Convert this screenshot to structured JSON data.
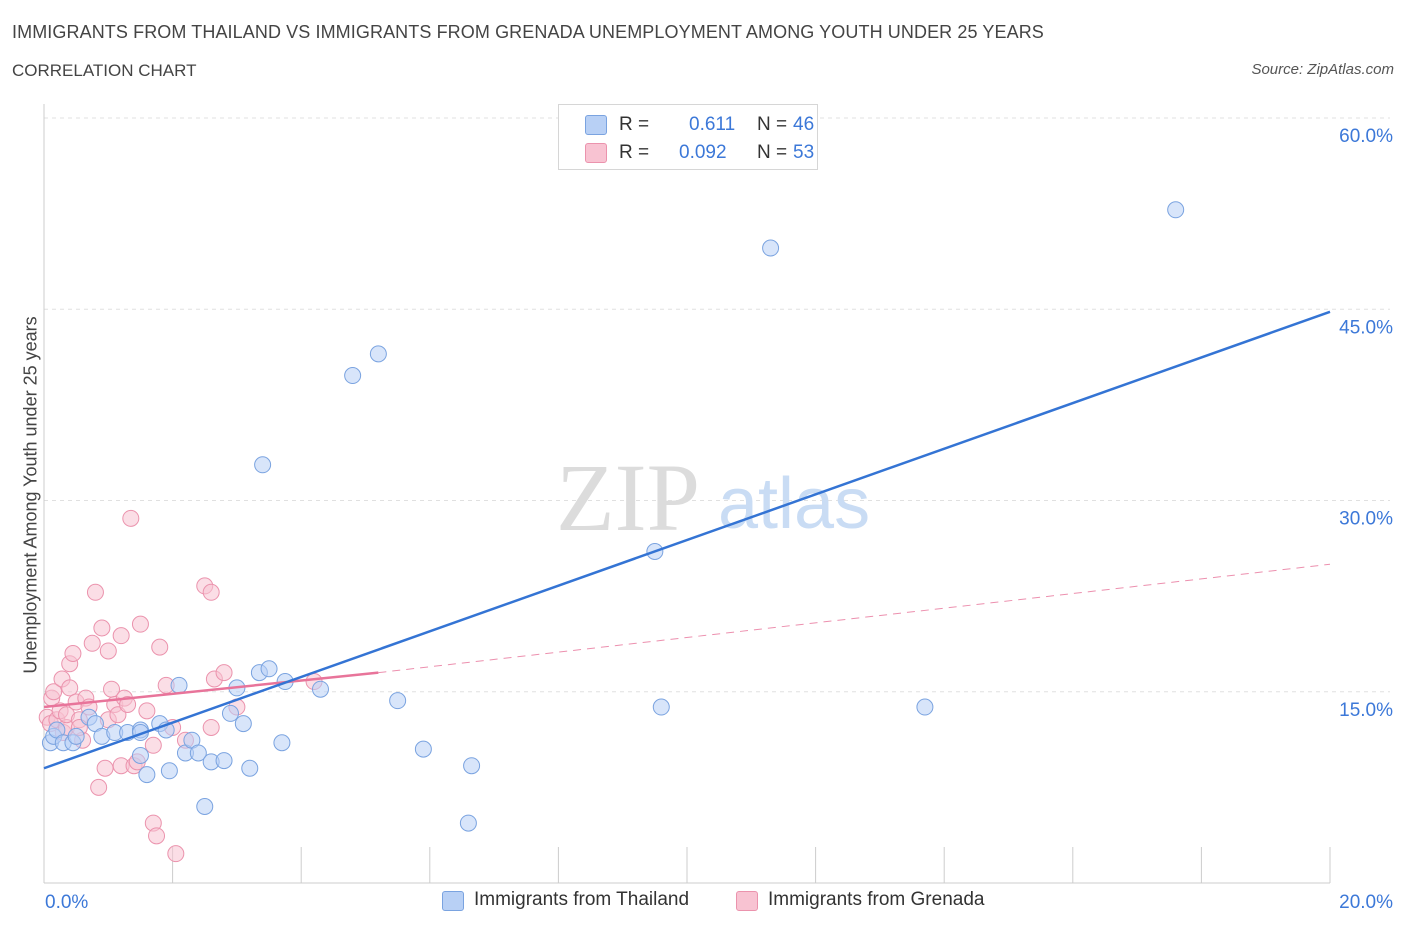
{
  "title": "IMMIGRANTS FROM THAILAND VS IMMIGRANTS FROM GRENADA UNEMPLOYMENT AMONG YOUTH UNDER 25 YEARS",
  "subtitle": "CORRELATION CHART",
  "source": "Source: ZipAtlas.com",
  "watermark": {
    "zip": "ZIP",
    "atlas": "atlas"
  },
  "legend": {
    "thailand": {
      "r_label": "R =",
      "r_value": "0.611",
      "n_label": "N =",
      "n_value": "46"
    },
    "grenada": {
      "r_label": "R =",
      "r_value": "0.092",
      "n_label": "N =",
      "n_value": "53"
    }
  },
  "colors": {
    "thailand_fill": "#b8d0f5",
    "thailand_stroke": "#7aa3e0",
    "thailand_line": "#3474d4",
    "grenada_fill": "#f8c3d2",
    "grenada_stroke": "#eb93ad",
    "grenada_line": "#e8749a",
    "axis_text": "#3c78d8",
    "grid": "#e0e0e0"
  },
  "chart_data": {
    "type": "scatter",
    "title": "IMMIGRANTS FROM THAILAND VS IMMIGRANTS FROM GRENADA UNEMPLOYMENT AMONG YOUTH UNDER 25 YEARS",
    "xlabel": "",
    "ylabel": "Unemployment Among Youth under 25 years",
    "xlim": [
      0,
      20
    ],
    "ylim": [
      0,
      60
    ],
    "x_tick_labels": [
      "0.0%",
      "20.0%"
    ],
    "y_ticks": [
      15,
      30,
      45,
      60
    ],
    "y_tick_labels": [
      "15.0%",
      "30.0%",
      "45.0%",
      "60.0%"
    ],
    "grid": true,
    "legend_position": "top-center",
    "series": [
      {
        "name": "Immigrants from Thailand",
        "color": "#7aa3e0",
        "points": [
          [
            0.1,
            11.0
          ],
          [
            0.15,
            11.5
          ],
          [
            0.2,
            12.0
          ],
          [
            0.3,
            11.0
          ],
          [
            0.45,
            11.0
          ],
          [
            0.5,
            11.5
          ],
          [
            0.7,
            13.0
          ],
          [
            0.8,
            12.5
          ],
          [
            0.9,
            11.5
          ],
          [
            1.1,
            11.8
          ],
          [
            1.3,
            11.8
          ],
          [
            1.5,
            12.0
          ],
          [
            1.5,
            11.8
          ],
          [
            1.5,
            10.0
          ],
          [
            1.6,
            8.5
          ],
          [
            1.8,
            12.5
          ],
          [
            1.9,
            12.0
          ],
          [
            1.95,
            8.8
          ],
          [
            2.1,
            15.5
          ],
          [
            2.2,
            10.2
          ],
          [
            2.3,
            11.2
          ],
          [
            2.4,
            10.2
          ],
          [
            2.5,
            6.0
          ],
          [
            2.6,
            9.5
          ],
          [
            2.8,
            9.6
          ],
          [
            2.9,
            13.3
          ],
          [
            3.0,
            15.3
          ],
          [
            3.1,
            12.5
          ],
          [
            3.2,
            9.0
          ],
          [
            3.35,
            16.5
          ],
          [
            3.4,
            32.8
          ],
          [
            3.5,
            16.8
          ],
          [
            3.7,
            11.0
          ],
          [
            3.75,
            15.8
          ],
          [
            4.3,
            15.2
          ],
          [
            4.8,
            39.8
          ],
          [
            5.2,
            41.5
          ],
          [
            5.5,
            14.3
          ],
          [
            5.9,
            10.5
          ],
          [
            6.6,
            4.7
          ],
          [
            6.65,
            9.2
          ],
          [
            9.5,
            26.0
          ],
          [
            9.6,
            13.8
          ],
          [
            11.3,
            49.8
          ],
          [
            13.7,
            13.8
          ],
          [
            17.6,
            52.8
          ]
        ],
        "trend": {
          "x": [
            0,
            20
          ],
          "y": [
            9.0,
            44.8
          ]
        }
      },
      {
        "name": "Immigrants from Grenada",
        "color": "#eb93ad",
        "points": [
          [
            0.05,
            13.0
          ],
          [
            0.1,
            12.5
          ],
          [
            0.12,
            14.5
          ],
          [
            0.15,
            15.0
          ],
          [
            0.2,
            12.8
          ],
          [
            0.25,
            13.5
          ],
          [
            0.28,
            16.0
          ],
          [
            0.3,
            11.8
          ],
          [
            0.35,
            12.2
          ],
          [
            0.35,
            13.2
          ],
          [
            0.4,
            15.3
          ],
          [
            0.4,
            17.2
          ],
          [
            0.45,
            18.0
          ],
          [
            0.5,
            14.2
          ],
          [
            0.55,
            12.8
          ],
          [
            0.6,
            11.2
          ],
          [
            0.65,
            14.5
          ],
          [
            0.7,
            13.8
          ],
          [
            0.55,
            12.2
          ],
          [
            0.75,
            18.8
          ],
          [
            0.8,
            22.8
          ],
          [
            0.85,
            7.5
          ],
          [
            0.9,
            20.0
          ],
          [
            0.95,
            9.0
          ],
          [
            1.0,
            18.2
          ],
          [
            1.0,
            12.8
          ],
          [
            1.05,
            15.2
          ],
          [
            1.1,
            14.0
          ],
          [
            1.15,
            13.2
          ],
          [
            1.2,
            9.2
          ],
          [
            1.2,
            19.4
          ],
          [
            1.25,
            14.5
          ],
          [
            1.3,
            14.0
          ],
          [
            1.35,
            28.6
          ],
          [
            1.4,
            9.2
          ],
          [
            1.5,
            20.3
          ],
          [
            1.6,
            13.5
          ],
          [
            1.7,
            10.8
          ],
          [
            1.7,
            4.7
          ],
          [
            1.75,
            3.7
          ],
          [
            1.8,
            18.5
          ],
          [
            1.9,
            15.5
          ],
          [
            2.0,
            12.2
          ],
          [
            2.05,
            2.3
          ],
          [
            2.2,
            11.2
          ],
          [
            2.5,
            23.3
          ],
          [
            2.6,
            22.8
          ],
          [
            2.6,
            12.2
          ],
          [
            2.65,
            16.0
          ],
          [
            2.8,
            16.5
          ],
          [
            3.0,
            13.8
          ],
          [
            4.2,
            15.8
          ],
          [
            1.45,
            9.5
          ]
        ],
        "trend_solid": {
          "x": [
            0,
            5.2
          ],
          "y": [
            13.8,
            16.5
          ]
        },
        "trend_dashed": {
          "x": [
            5.2,
            20
          ],
          "y": [
            16.5,
            25.0
          ]
        }
      }
    ]
  },
  "bottom_legend": {
    "thailand": "Immigrants from Thailand",
    "grenada": "Immigrants from Grenada"
  }
}
